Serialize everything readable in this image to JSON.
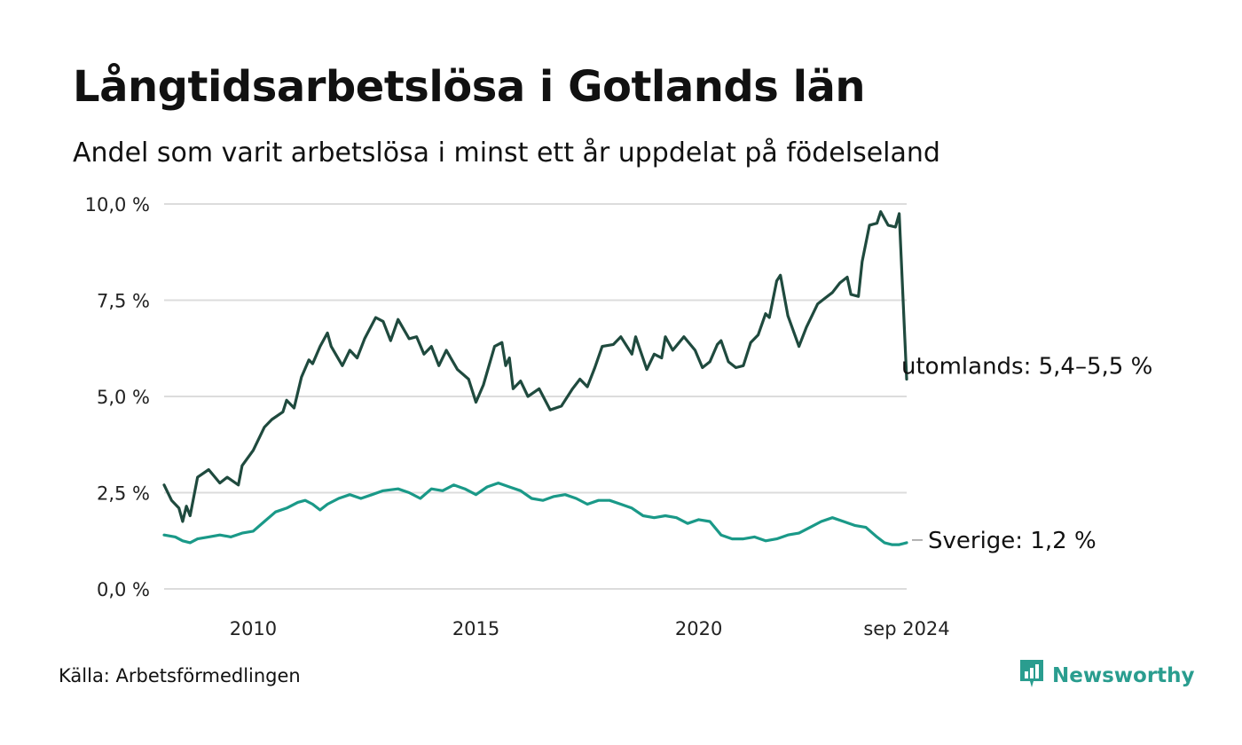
{
  "header": {
    "title": "Långtidsarbetslösa i Gotlands län",
    "subtitle": "Andel som varit arbetslösa i minst ett år uppdelat på födelseland"
  },
  "footer": {
    "source": "Källa: Arbetsförmedlingen",
    "brand": "Newsworthy"
  },
  "colors": {
    "utomlands": "#1f4a3e",
    "sverige": "#1a9988",
    "grid": "#dcdcdc",
    "brand": "#2a9d8f"
  },
  "chart_data": {
    "type": "line",
    "title": "Långtidsarbetslösa i Gotlands län",
    "subtitle": "Andel som varit arbetslösa i minst ett år uppdelat på födelseland",
    "xlabel": "",
    "ylabel": "",
    "ylim": [
      0,
      10
    ],
    "yticks": [
      {
        "value": 0,
        "label": "0,0 %"
      },
      {
        "value": 2.5,
        "label": "2,5 %"
      },
      {
        "value": 5,
        "label": "5,0 %"
      },
      {
        "value": 7.5,
        "label": "7,5 %"
      },
      {
        "value": 10,
        "label": "10,0 %"
      }
    ],
    "xlim": [
      "2008-01",
      "2024-09"
    ],
    "xticks": [
      {
        "value": "2010-01",
        "label": "2010"
      },
      {
        "value": "2015-01",
        "label": "2015"
      },
      {
        "value": "2020-01",
        "label": "2020"
      },
      {
        "value": "2024-09",
        "label": "sep 2024"
      }
    ],
    "grid": true,
    "series": [
      {
        "name": "utomlands",
        "end_label": "utomlands: 5,4–5,5 %",
        "points": [
          [
            "2008-01",
            2.7
          ],
          [
            "2008-03",
            2.3
          ],
          [
            "2008-05",
            2.1
          ],
          [
            "2008-06",
            1.75
          ],
          [
            "2008-07",
            2.15
          ],
          [
            "2008-08",
            1.9
          ],
          [
            "2008-10",
            2.9
          ],
          [
            "2009-01",
            3.1
          ],
          [
            "2009-04",
            2.75
          ],
          [
            "2009-06",
            2.9
          ],
          [
            "2009-09",
            2.7
          ],
          [
            "2009-10",
            3.2
          ],
          [
            "2010-01",
            3.6
          ],
          [
            "2010-04",
            4.2
          ],
          [
            "2010-06",
            4.4
          ],
          [
            "2010-09",
            4.6
          ],
          [
            "2010-10",
            4.9
          ],
          [
            "2010-12",
            4.7
          ],
          [
            "2011-02",
            5.5
          ],
          [
            "2011-04",
            5.95
          ],
          [
            "2011-05",
            5.85
          ],
          [
            "2011-07",
            6.3
          ],
          [
            "2011-09",
            6.65
          ],
          [
            "2011-10",
            6.3
          ],
          [
            "2012-01",
            5.8
          ],
          [
            "2012-03",
            6.2
          ],
          [
            "2012-05",
            6.0
          ],
          [
            "2012-07",
            6.5
          ],
          [
            "2012-10",
            7.05
          ],
          [
            "2012-12",
            6.95
          ],
          [
            "2013-02",
            6.45
          ],
          [
            "2013-04",
            7.0
          ],
          [
            "2013-07",
            6.5
          ],
          [
            "2013-09",
            6.55
          ],
          [
            "2013-11",
            6.1
          ],
          [
            "2014-01",
            6.3
          ],
          [
            "2014-03",
            5.8
          ],
          [
            "2014-05",
            6.2
          ],
          [
            "2014-08",
            5.7
          ],
          [
            "2014-11",
            5.45
          ],
          [
            "2015-01",
            4.85
          ],
          [
            "2015-03",
            5.3
          ],
          [
            "2015-06",
            6.3
          ],
          [
            "2015-08",
            6.4
          ],
          [
            "2015-09",
            5.8
          ],
          [
            "2015-10",
            6.0
          ],
          [
            "2015-11",
            5.2
          ],
          [
            "2016-01",
            5.4
          ],
          [
            "2016-03",
            5.0
          ],
          [
            "2016-06",
            5.2
          ],
          [
            "2016-09",
            4.65
          ],
          [
            "2016-12",
            4.75
          ],
          [
            "2017-03",
            5.2
          ],
          [
            "2017-05",
            5.45
          ],
          [
            "2017-07",
            5.25
          ],
          [
            "2017-09",
            5.75
          ],
          [
            "2017-11",
            6.3
          ],
          [
            "2018-02",
            6.35
          ],
          [
            "2018-04",
            6.55
          ],
          [
            "2018-07",
            6.1
          ],
          [
            "2018-08",
            6.55
          ],
          [
            "2018-11",
            5.7
          ],
          [
            "2019-01",
            6.1
          ],
          [
            "2019-03",
            6.0
          ],
          [
            "2019-04",
            6.55
          ],
          [
            "2019-06",
            6.2
          ],
          [
            "2019-09",
            6.55
          ],
          [
            "2019-12",
            6.2
          ],
          [
            "2020-02",
            5.75
          ],
          [
            "2020-04",
            5.9
          ],
          [
            "2020-06",
            6.35
          ],
          [
            "2020-07",
            6.45
          ],
          [
            "2020-09",
            5.9
          ],
          [
            "2020-11",
            5.75
          ],
          [
            "2021-01",
            5.8
          ],
          [
            "2021-03",
            6.4
          ],
          [
            "2021-05",
            6.6
          ],
          [
            "2021-07",
            7.15
          ],
          [
            "2021-08",
            7.05
          ],
          [
            "2021-10",
            8.0
          ],
          [
            "2021-11",
            8.15
          ],
          [
            "2022-01",
            7.1
          ],
          [
            "2022-04",
            6.3
          ],
          [
            "2022-06",
            6.8
          ],
          [
            "2022-09",
            7.4
          ],
          [
            "2022-11",
            7.55
          ],
          [
            "2023-01",
            7.7
          ],
          [
            "2023-03",
            7.95
          ],
          [
            "2023-05",
            8.1
          ],
          [
            "2023-06",
            7.65
          ],
          [
            "2023-08",
            7.6
          ],
          [
            "2023-09",
            8.5
          ],
          [
            "2023-11",
            9.45
          ],
          [
            "2024-01",
            9.5
          ],
          [
            "2024-02",
            9.8
          ],
          [
            "2024-04",
            9.45
          ],
          [
            "2024-06",
            9.4
          ],
          [
            "2024-07",
            9.75
          ],
          [
            "2024-09",
            5.45
          ]
        ]
      },
      {
        "name": "Sverige",
        "end_label": "Sverige: 1,2 %",
        "points": [
          [
            "2008-01",
            1.4
          ],
          [
            "2008-04",
            1.35
          ],
          [
            "2008-06",
            1.25
          ],
          [
            "2008-08",
            1.2
          ],
          [
            "2008-10",
            1.3
          ],
          [
            "2009-01",
            1.35
          ],
          [
            "2009-04",
            1.4
          ],
          [
            "2009-07",
            1.35
          ],
          [
            "2009-10",
            1.45
          ],
          [
            "2010-01",
            1.5
          ],
          [
            "2010-04",
            1.75
          ],
          [
            "2010-07",
            2.0
          ],
          [
            "2010-10",
            2.1
          ],
          [
            "2011-01",
            2.25
          ],
          [
            "2011-03",
            2.3
          ],
          [
            "2011-05",
            2.2
          ],
          [
            "2011-07",
            2.05
          ],
          [
            "2011-09",
            2.2
          ],
          [
            "2011-12",
            2.35
          ],
          [
            "2012-03",
            2.45
          ],
          [
            "2012-06",
            2.35
          ],
          [
            "2012-09",
            2.45
          ],
          [
            "2012-12",
            2.55
          ],
          [
            "2013-04",
            2.6
          ],
          [
            "2013-07",
            2.5
          ],
          [
            "2013-10",
            2.35
          ],
          [
            "2014-01",
            2.6
          ],
          [
            "2014-04",
            2.55
          ],
          [
            "2014-07",
            2.7
          ],
          [
            "2014-10",
            2.6
          ],
          [
            "2015-01",
            2.45
          ],
          [
            "2015-04",
            2.65
          ],
          [
            "2015-07",
            2.75
          ],
          [
            "2015-10",
            2.65
          ],
          [
            "2016-01",
            2.55
          ],
          [
            "2016-04",
            2.35
          ],
          [
            "2016-07",
            2.3
          ],
          [
            "2016-10",
            2.4
          ],
          [
            "2017-01",
            2.45
          ],
          [
            "2017-04",
            2.35
          ],
          [
            "2017-07",
            2.2
          ],
          [
            "2017-10",
            2.3
          ],
          [
            "2018-01",
            2.3
          ],
          [
            "2018-04",
            2.2
          ],
          [
            "2018-07",
            2.1
          ],
          [
            "2018-10",
            1.9
          ],
          [
            "2019-01",
            1.85
          ],
          [
            "2019-04",
            1.9
          ],
          [
            "2019-07",
            1.85
          ],
          [
            "2019-10",
            1.7
          ],
          [
            "2020-01",
            1.8
          ],
          [
            "2020-04",
            1.75
          ],
          [
            "2020-07",
            1.4
          ],
          [
            "2020-10",
            1.3
          ],
          [
            "2021-01",
            1.3
          ],
          [
            "2021-04",
            1.35
          ],
          [
            "2021-07",
            1.25
          ],
          [
            "2021-10",
            1.3
          ],
          [
            "2022-01",
            1.4
          ],
          [
            "2022-04",
            1.45
          ],
          [
            "2022-07",
            1.6
          ],
          [
            "2022-10",
            1.75
          ],
          [
            "2023-01",
            1.85
          ],
          [
            "2023-04",
            1.75
          ],
          [
            "2023-07",
            1.65
          ],
          [
            "2023-10",
            1.6
          ],
          [
            "2024-01",
            1.35
          ],
          [
            "2024-03",
            1.2
          ],
          [
            "2024-05",
            1.15
          ],
          [
            "2024-07",
            1.15
          ],
          [
            "2024-09",
            1.2
          ]
        ]
      }
    ]
  }
}
